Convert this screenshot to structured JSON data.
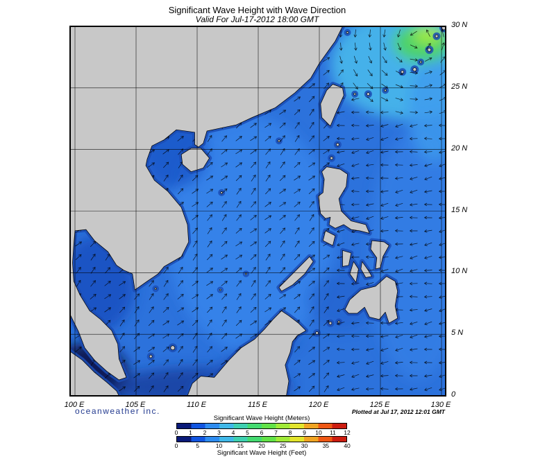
{
  "header": {
    "title": "Significant Wave Height with Wave Direction",
    "subtitle": "Valid For Jul-17-2012 18:00 GMT"
  },
  "map": {
    "lat_labels": [
      "30 N",
      "25 N",
      "20 N",
      "15 N",
      "10 N",
      "5 N",
      "0"
    ],
    "lon_labels": [
      "100 E",
      "105 E",
      "110 E",
      "115 E",
      "120 E",
      "125 E",
      "130 E"
    ],
    "ocean_color": "#2c72dc",
    "land_color": "#c8c8c8"
  },
  "legend": {
    "meters_title": "Significant Wave Height (Meters)",
    "meters_ticks": [
      "0",
      "1",
      "2",
      "3",
      "4",
      "5",
      "6",
      "7",
      "8",
      "9",
      "10",
      "11",
      "12"
    ],
    "feet_title": "Significant Wave Height (Feet)",
    "feet_ticks": [
      "0",
      "5",
      "10",
      "15",
      "20",
      "25",
      "30",
      "35",
      "40"
    ],
    "colors": [
      "#0a1a78",
      "#1155e0",
      "#2e8cf0",
      "#40b8e8",
      "#3fd0b0",
      "#44da70",
      "#62e248",
      "#a0ea38",
      "#e2e42c",
      "#f0a422",
      "#ee5815",
      "#cc1d10"
    ]
  },
  "footer": {
    "branding": "oceanweather inc.",
    "plotted_at": "Plotted at Jul 17, 2012 12:01 GMT"
  }
}
